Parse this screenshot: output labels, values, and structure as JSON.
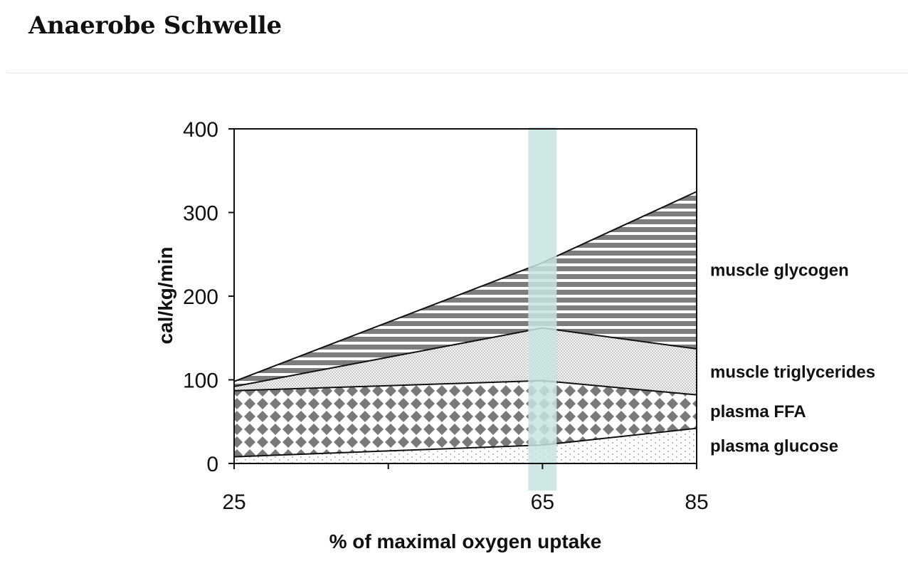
{
  "page": {
    "title": "Anaerobe Schwelle"
  },
  "chart_data": {
    "type": "area",
    "stacked": true,
    "title": "",
    "xlabel": "% of maximal oxygen uptake",
    "ylabel": "cal/kg/min",
    "x": [
      25,
      65,
      85
    ],
    "x_ticks": [
      25,
      65,
      85
    ],
    "y_ticks": [
      0,
      100,
      200,
      300,
      400
    ],
    "xlim": [
      25,
      85
    ],
    "ylim": [
      0,
      400
    ],
    "grid": false,
    "legend": "labels at right of plot",
    "highlight": {
      "x": 65,
      "color": "#c7e4e1"
    },
    "series": [
      {
        "name": "plasma glucose",
        "values": [
          8,
          22,
          42
        ],
        "pattern": "dots-sparse"
      },
      {
        "name": "plasma FFA",
        "values": [
          79,
          77,
          40
        ],
        "pattern": "diamonds"
      },
      {
        "name": "muscle triglycerides",
        "values": [
          5,
          63,
          55
        ],
        "pattern": "dots-dense"
      },
      {
        "name": "muscle glycogen",
        "values": [
          6,
          78,
          188
        ],
        "pattern": "horizontal-lines"
      }
    ],
    "colors": {
      "ink": "#111111",
      "pattern_gray": "#7a7a7a",
      "highlight": "#c7e4e1"
    }
  }
}
